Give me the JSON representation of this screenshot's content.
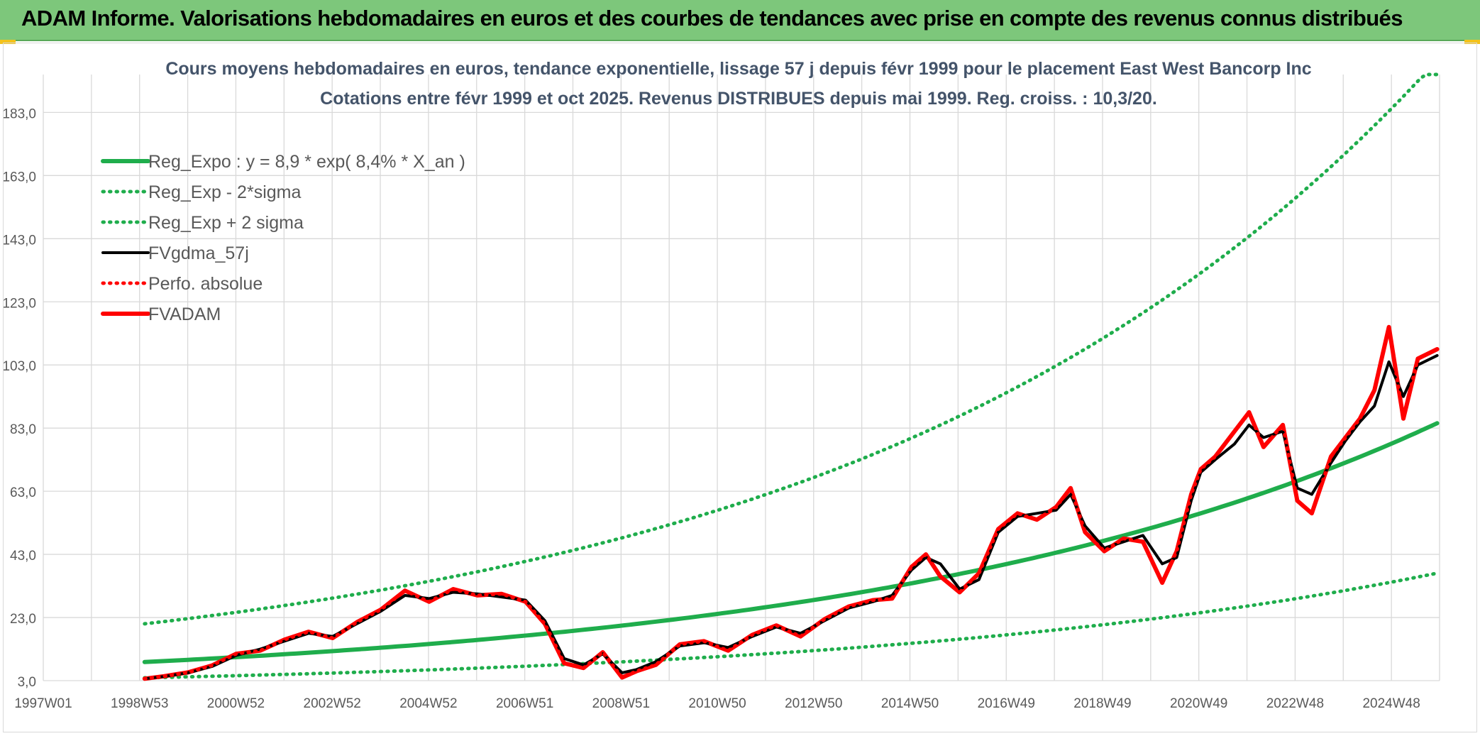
{
  "header": {
    "title": "ADAM Informe. Valorisations hebdomadaires en euros et des courbes de tendances avec prise en compte des revenus connus distribués"
  },
  "colors": {
    "banner": "#7dc77b",
    "trend": "#1fad4c",
    "smooth": "#000000",
    "price": "#ff0000",
    "grid": "#d9d9d9",
    "title_text": "#44546a"
  },
  "chart_data": {
    "type": "line",
    "title": "Cours moyens hebdomadaires en euros, tendance exponentielle, lissage 57 j depuis févr 1999 pour le placement East West Bancorp Inc",
    "subtitle": "Cotations entre févr 1999 et oct 2025. Revenus DISTRIBUES depuis mai 1999. Reg. croiss. : 10,3/20.",
    "xlabel": "",
    "ylabel": "",
    "ylim": [
      3.0,
      195.0
    ],
    "y_ticks": [
      "3,0",
      "23,0",
      "43,0",
      "63,0",
      "83,0",
      "103,0",
      "123,0",
      "143,0",
      "163,0",
      "183,0"
    ],
    "x_range_years": [
      1997.0,
      2025.95
    ],
    "x_ticks": [
      "1997W01",
      "1998W53",
      "2000W52",
      "2002W52",
      "2004W52",
      "2006W51",
      "2008W51",
      "2010W50",
      "2012W50",
      "2014W50",
      "2016W49",
      "2018W49",
      "2020W49",
      "2022W48",
      "2024W48"
    ],
    "grid": true,
    "legend_position": "top-left",
    "regression": {
      "a": 8.9,
      "rate_pct": 8.4,
      "start_year": 1999.1
    },
    "series": [
      {
        "name": "Reg_Expo : y = 8,9 * exp( 8,4% *  X_an )",
        "style": "solid-thick",
        "color": "#1fad4c",
        "x": [
          1999.1,
          2001,
          2003,
          2005,
          2007,
          2009,
          2011,
          2013,
          2015,
          2017,
          2019,
          2021,
          2023,
          2025.9
        ],
        "values": [
          8.9,
          10.4,
          12.3,
          14.5,
          17.1,
          20.1,
          23.8,
          28.0,
          33.1,
          39.0,
          46.0,
          54.3,
          64.1,
          81.7
        ]
      },
      {
        "name": "Reg_Exp - 2*sigma",
        "style": "dotted",
        "color": "#1fad4c",
        "x": [
          1999.1,
          2001,
          2003,
          2005,
          2007,
          2009,
          2011,
          2013,
          2015,
          2017,
          2019,
          2021,
          2023,
          2025.9
        ],
        "values": [
          3.9,
          4.6,
          5.4,
          6.4,
          7.5,
          8.9,
          10.5,
          12.4,
          14.6,
          17.2,
          20.3,
          24.0,
          28.3,
          36.0
        ]
      },
      {
        "name": "Reg_Exp + 2 sigma",
        "style": "dotted",
        "color": "#1fad4c",
        "x": [
          1999.1,
          2001,
          2003,
          2005,
          2007,
          2009,
          2011,
          2013,
          2015,
          2017,
          2019,
          2021,
          2023,
          2025.9
        ],
        "values": [
          21.0,
          24.6,
          29.0,
          34.2,
          40.4,
          47.6,
          56.2,
          66.3,
          78.2,
          92.3,
          108.9,
          128.5,
          151.6,
          195.0
        ]
      },
      {
        "name": "FVgdma_57j",
        "style": "solid",
        "color": "#000000",
        "x": [
          1999.1,
          1999.5,
          2000.0,
          2000.5,
          2001.0,
          2001.5,
          2002.0,
          2002.5,
          2003.0,
          2003.5,
          2004.0,
          2004.5,
          2005.0,
          2005.5,
          2006.0,
          2006.5,
          2007.0,
          2007.4,
          2007.8,
          2008.2,
          2008.6,
          2009.0,
          2009.3,
          2009.7,
          2010.2,
          2010.7,
          2011.2,
          2011.7,
          2012.2,
          2012.7,
          2013.2,
          2013.7,
          2014.2,
          2014.6,
          2015.0,
          2015.3,
          2015.6,
          2016.0,
          2016.4,
          2016.8,
          2017.2,
          2017.6,
          2018.0,
          2018.3,
          2018.6,
          2019.0,
          2019.4,
          2019.8,
          2020.2,
          2020.5,
          2020.8,
          2021.0,
          2021.3,
          2021.7,
          2022.0,
          2022.3,
          2022.7,
          2023.0,
          2023.3,
          2023.7,
          2024.0,
          2024.3,
          2024.6,
          2024.9,
          2025.2,
          2025.5,
          2025.9
        ],
        "values": [
          3.6,
          4.3,
          5.5,
          7.5,
          11.0,
          13.0,
          15.5,
          18.0,
          17.0,
          21.0,
          25.0,
          30.0,
          29.0,
          31.0,
          30.5,
          29.5,
          28.5,
          22.0,
          10.0,
          8.0,
          11.5,
          5.5,
          6.5,
          9.0,
          14.0,
          15.0,
          13.5,
          17.0,
          20.0,
          18.0,
          22.0,
          26.0,
          28.0,
          30.0,
          38.0,
          42.0,
          40.0,
          32.0,
          35.0,
          50.0,
          55.0,
          56.0,
          57.0,
          62.0,
          52.0,
          45.0,
          47.0,
          49.0,
          40.0,
          42.0,
          60.0,
          69.0,
          73.0,
          78.0,
          84.0,
          80.0,
          82.0,
          64.0,
          62.0,
          72.0,
          79.0,
          85.0,
          90.0,
          104.0,
          93.0,
          103.0,
          106.0
        ]
      },
      {
        "name": "Perfo. absolue",
        "style": "dotted",
        "color": "#ff0000",
        "x": [
          1999.1,
          1999.5,
          2000.0,
          2000.5,
          2001.0,
          2001.5,
          2002.0,
          2002.5,
          2003.0,
          2003.5,
          2004.0,
          2004.5,
          2005.0,
          2005.5,
          2006.0,
          2006.5,
          2007.0,
          2007.4,
          2007.8,
          2008.2,
          2008.6,
          2009.0,
          2009.3,
          2009.7,
          2010.2,
          2010.7,
          2011.2,
          2011.7,
          2012.2,
          2012.7,
          2013.2,
          2013.7,
          2014.2,
          2014.6,
          2015.0,
          2015.3,
          2015.6,
          2016.0,
          2016.4,
          2016.8,
          2017.2,
          2017.6,
          2018.0,
          2018.3,
          2018.6,
          2019.0,
          2019.4,
          2019.8,
          2020.2,
          2020.5,
          2020.8,
          2021.0,
          2021.3,
          2021.7,
          2022.0,
          2022.3,
          2022.7,
          2023.0,
          2023.3,
          2023.7,
          2024.0,
          2024.3,
          2024.6,
          2024.9,
          2025.2,
          2025.5,
          2025.9
        ],
        "values": [
          3.6,
          4.4,
          5.6,
          7.8,
          11.5,
          12.5,
          16.0,
          18.5,
          16.5,
          21.5,
          25.5,
          31.5,
          28.0,
          32.0,
          30.0,
          30.5,
          28.0,
          21.0,
          8.5,
          7.0,
          12.0,
          4.0,
          6.0,
          8.0,
          14.5,
          15.5,
          12.5,
          17.5,
          20.5,
          17.0,
          22.5,
          26.5,
          28.5,
          29.0,
          39.0,
          43.0,
          36.0,
          31.0,
          37.0,
          51.0,
          56.0,
          54.0,
          58.0,
          64.0,
          50.0,
          44.0,
          48.0,
          47.0,
          34.0,
          44.0,
          62.0,
          70.0,
          74.0,
          82.0,
          88.0,
          77.0,
          84.0,
          60.0,
          56.0,
          74.0,
          80.0,
          86.0,
          95.0,
          115.0,
          86.0,
          105.0,
          108.0
        ]
      },
      {
        "name": "FVADAM",
        "style": "solid-thick",
        "color": "#ff0000",
        "x": [
          1999.1,
          1999.5,
          2000.0,
          2000.5,
          2001.0,
          2001.5,
          2002.0,
          2002.5,
          2003.0,
          2003.5,
          2004.0,
          2004.5,
          2005.0,
          2005.5,
          2006.0,
          2006.5,
          2007.0,
          2007.4,
          2007.8,
          2008.2,
          2008.6,
          2009.0,
          2009.3,
          2009.7,
          2010.2,
          2010.7,
          2011.2,
          2011.7,
          2012.2,
          2012.7,
          2013.2,
          2013.7,
          2014.2,
          2014.6,
          2015.0,
          2015.3,
          2015.6,
          2016.0,
          2016.4,
          2016.8,
          2017.2,
          2017.6,
          2018.0,
          2018.3,
          2018.6,
          2019.0,
          2019.4,
          2019.8,
          2020.2,
          2020.5,
          2020.8,
          2021.0,
          2021.3,
          2021.7,
          2022.0,
          2022.3,
          2022.7,
          2023.0,
          2023.3,
          2023.7,
          2024.0,
          2024.3,
          2024.6,
          2024.9,
          2025.2,
          2025.5,
          2025.9
        ],
        "values": [
          3.6,
          4.4,
          5.6,
          7.8,
          11.5,
          12.5,
          16.0,
          18.5,
          16.5,
          21.5,
          25.5,
          31.5,
          28.0,
          32.0,
          30.0,
          30.5,
          28.0,
          21.0,
          8.5,
          7.0,
          12.0,
          4.0,
          6.0,
          8.0,
          14.5,
          15.5,
          12.5,
          17.5,
          20.5,
          17.0,
          22.5,
          26.5,
          28.5,
          29.0,
          39.0,
          43.0,
          36.0,
          31.0,
          37.0,
          51.0,
          56.0,
          54.0,
          58.0,
          64.0,
          50.0,
          44.0,
          48.0,
          47.0,
          34.0,
          44.0,
          62.0,
          70.0,
          74.0,
          82.0,
          88.0,
          77.0,
          84.0,
          60.0,
          56.0,
          74.0,
          80.0,
          86.0,
          95.0,
          115.0,
          86.0,
          105.0,
          108.0
        ]
      }
    ]
  }
}
